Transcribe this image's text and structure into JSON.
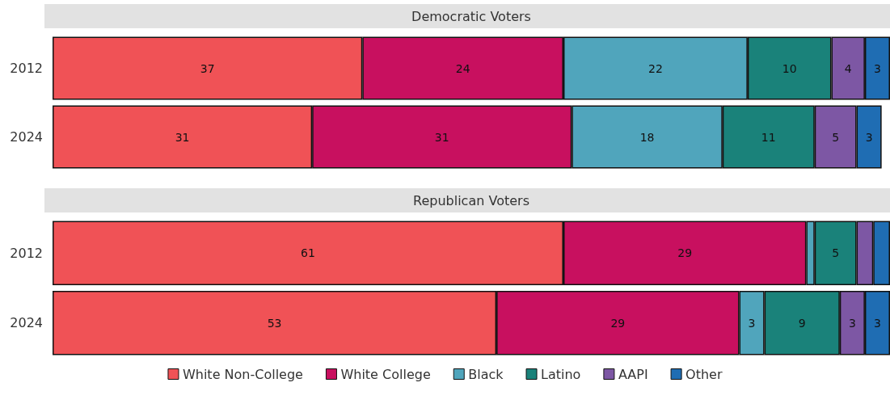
{
  "chart_data": [
    {
      "type": "bar",
      "title": "Democratic Voters",
      "orientation": "horizontal",
      "stacked": true,
      "categories": [
        "2012",
        "2024"
      ],
      "xlim": [
        0,
        100
      ],
      "tick_labels": "y",
      "grid": false,
      "legend": false,
      "series": [
        {
          "color": "#f05256",
          "values": [
            37,
            31
          ],
          "value_labels": [
            "37",
            "31"
          ]
        },
        {
          "color": "#c8105f",
          "values": [
            24,
            31
          ],
          "value_labels": [
            "24",
            "31"
          ]
        },
        {
          "color": "#50a5bc",
          "values": [
            22,
            18
          ],
          "value_labels": [
            "22",
            "18"
          ]
        },
        {
          "color": "#1a827a",
          "values": [
            10,
            11
          ],
          "value_labels": [
            "10",
            "11"
          ]
        },
        {
          "color": "#7d57a4",
          "values": [
            4,
            5
          ],
          "value_labels": [
            "4",
            "5"
          ]
        },
        {
          "color": "#1f6db3",
          "values": [
            3,
            3
          ],
          "value_labels": [
            "3",
            "3"
          ]
        }
      ]
    },
    {
      "type": "bar",
      "title": "Republican Voters",
      "orientation": "horizontal",
      "stacked": true,
      "categories": [
        "2012",
        "2024"
      ],
      "xlim": [
        0,
        100
      ],
      "tick_labels": "y",
      "grid": false,
      "legend": "bottom",
      "series": [
        {
          "name": "White Non-College",
          "color": "#f05256",
          "values": [
            61,
            53
          ],
          "value_labels": [
            "61",
            "53"
          ]
        },
        {
          "name": "White College",
          "color": "#c8105f",
          "values": [
            29,
            29
          ],
          "value_labels": [
            "29",
            "29"
          ]
        },
        {
          "name": "Black",
          "color": "#50a5bc",
          "values": [
            1,
            3
          ],
          "value_labels": [
            null,
            "3"
          ]
        },
        {
          "name": "Latino",
          "color": "#1a827a",
          "values": [
            5,
            9
          ],
          "value_labels": [
            "5",
            "9"
          ]
        },
        {
          "name": "AAPI",
          "color": "#7d57a4",
          "values": [
            2,
            3
          ],
          "value_labels": [
            null,
            "3"
          ]
        },
        {
          "name": "Other",
          "color": "#1f6db3",
          "values": [
            2,
            3
          ],
          "value_labels": [
            null,
            "3"
          ]
        }
      ]
    }
  ]
}
